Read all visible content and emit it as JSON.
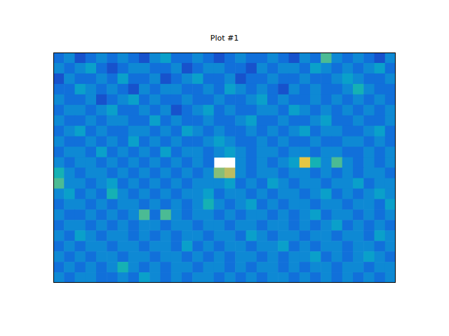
{
  "chart_data": {
    "type": "heatmap",
    "title": "Plot #1",
    "tick_labels": false,
    "zlim": [
      0,
      1
    ],
    "cells": [
      [
        0.2,
        0.3,
        0.1,
        0.2,
        0.3,
        0.2,
        0.3,
        0.2,
        0.1,
        0.3,
        0.4,
        0.2,
        0.2,
        0.3,
        0.2,
        0.1,
        0.2,
        0.3,
        0.2,
        0.2,
        0.3,
        0.2,
        0.1,
        0.3,
        0.2,
        0.6,
        0.3,
        0.2,
        0.3,
        0.2,
        0.1,
        0.3
      ],
      [
        0.3,
        0.2,
        0.3,
        0.4,
        0.2,
        0.1,
        0.2,
        0.3,
        0.3,
        0.2,
        0.2,
        0.3,
        0.1,
        0.2,
        0.3,
        0.3,
        0.2,
        0.2,
        0.1,
        0.3,
        0.2,
        0.3,
        0.3,
        0.2,
        0.4,
        0.3,
        0.2,
        0.3,
        0.2,
        0.3,
        0.4,
        0.2
      ],
      [
        0.1,
        0.3,
        0.2,
        0.2,
        0.3,
        0.2,
        0.4,
        0.2,
        0.2,
        0.3,
        0.1,
        0.2,
        0.3,
        0.4,
        0.2,
        0.2,
        0.3,
        0.1,
        0.2,
        0.2,
        0.3,
        0.2,
        0.2,
        0.3,
        0.2,
        0.2,
        0.3,
        0.4,
        0.3,
        0.2,
        0.2,
        0.3
      ],
      [
        0.2,
        0.2,
        0.4,
        0.3,
        0.2,
        0.3,
        0.2,
        0.1,
        0.3,
        0.2,
        0.3,
        0.3,
        0.2,
        0.2,
        0.3,
        0.2,
        0.4,
        0.3,
        0.2,
        0.3,
        0.2,
        0.1,
        0.3,
        0.2,
        0.3,
        0.2,
        0.2,
        0.3,
        0.5,
        0.3,
        0.2,
        0.2
      ],
      [
        0.3,
        0.2,
        0.2,
        0.3,
        0.1,
        0.2,
        0.3,
        0.4,
        0.2,
        0.3,
        0.2,
        0.2,
        0.3,
        0.2,
        0.2,
        0.3,
        0.2,
        0.2,
        0.3,
        0.4,
        0.2,
        0.3,
        0.2,
        0.2,
        0.3,
        0.2,
        0.3,
        0.2,
        0.3,
        0.2,
        0.3,
        0.2
      ],
      [
        0.2,
        0.3,
        0.3,
        0.2,
        0.3,
        0.4,
        0.2,
        0.2,
        0.3,
        0.2,
        0.3,
        0.1,
        0.2,
        0.3,
        0.4,
        0.2,
        0.3,
        0.2,
        0.2,
        0.3,
        0.3,
        0.2,
        0.4,
        0.3,
        0.2,
        0.3,
        0.2,
        0.3,
        0.2,
        0.3,
        0.2,
        0.3
      ],
      [
        0.3,
        0.2,
        0.2,
        0.3,
        0.2,
        0.3,
        0.3,
        0.2,
        0.2,
        0.4,
        0.2,
        0.3,
        0.2,
        0.2,
        0.3,
        0.2,
        0.2,
        0.3,
        0.4,
        0.2,
        0.2,
        0.3,
        0.2,
        0.2,
        0.3,
        0.4,
        0.2,
        0.2,
        0.3,
        0.2,
        0.2,
        0.3
      ],
      [
        0.2,
        0.3,
        0.4,
        0.2,
        0.3,
        0.2,
        0.2,
        0.3,
        0.3,
        0.2,
        0.3,
        0.2,
        0.4,
        0.3,
        0.2,
        0.3,
        0.2,
        0.2,
        0.3,
        0.2,
        0.3,
        0.2,
        0.3,
        0.4,
        0.2,
        0.3,
        0.3,
        0.2,
        0.2,
        0.3,
        0.4,
        0.2
      ],
      [
        0.3,
        0.2,
        0.2,
        0.3,
        0.2,
        0.3,
        0.2,
        0.4,
        0.2,
        0.3,
        0.2,
        0.3,
        0.2,
        0.2,
        0.3,
        0.4,
        0.3,
        0.2,
        0.2,
        0.3,
        0.2,
        0.3,
        0.2,
        0.2,
        0.3,
        0.2,
        0.2,
        0.3,
        0.3,
        0.2,
        0.3,
        0.2
      ],
      [
        0.2,
        0.3,
        0.3,
        0.2,
        0.4,
        0.2,
        0.3,
        0.2,
        0.3,
        0.2,
        0.4,
        0.2,
        0.3,
        0.3,
        0.2,
        0.3,
        0.4,
        0.3,
        0.2,
        0.3,
        0.3,
        0.2,
        0.3,
        0.3,
        0.2,
        0.3,
        0.3,
        0.2,
        0.2,
        0.3,
        0.2,
        0.3
      ],
      [
        0.3,
        0.2,
        0.3,
        0.3,
        0.2,
        0.3,
        0.2,
        0.3,
        0.2,
        0.3,
        0.2,
        0.3,
        0.2,
        0.3,
        0.2,
        null,
        null,
        0.3,
        0.2,
        0.3,
        0.2,
        0.3,
        0.4,
        0.9,
        0.5,
        0.3,
        0.6,
        0.3,
        0.2,
        0.3,
        0.2,
        0.3
      ],
      [
        0.5,
        0.3,
        0.2,
        0.3,
        0.3,
        0.2,
        0.3,
        0.2,
        0.3,
        0.2,
        0.3,
        0.2,
        0.3,
        0.2,
        0.3,
        0.7,
        0.8,
        0.3,
        0.2,
        0.3,
        0.3,
        0.2,
        0.3,
        0.3,
        0.2,
        0.3,
        0.2,
        0.3,
        0.2,
        0.3,
        0.3,
        0.2
      ],
      [
        0.6,
        0.3,
        0.3,
        0.2,
        0.3,
        0.4,
        0.2,
        0.3,
        0.2,
        0.3,
        0.2,
        0.3,
        0.2,
        0.3,
        0.3,
        0.3,
        0.4,
        0.2,
        0.3,
        0.2,
        0.4,
        0.3,
        0.2,
        0.3,
        0.3,
        0.2,
        0.3,
        0.3,
        0.4,
        0.2,
        0.3,
        0.3
      ],
      [
        0.3,
        0.4,
        0.2,
        0.3,
        0.2,
        0.5,
        0.3,
        0.2,
        0.3,
        0.2,
        0.3,
        0.2,
        0.3,
        0.3,
        0.4,
        0.2,
        0.3,
        0.3,
        0.2,
        0.3,
        0.2,
        0.3,
        0.3,
        0.2,
        0.3,
        0.4,
        0.2,
        0.3,
        0.2,
        0.3,
        0.4,
        0.3
      ],
      [
        0.2,
        0.3,
        0.3,
        0.2,
        0.3,
        0.2,
        0.3,
        0.3,
        0.2,
        0.3,
        0.2,
        0.3,
        0.2,
        0.3,
        0.5,
        0.3,
        0.2,
        0.3,
        0.4,
        0.2,
        0.3,
        0.2,
        0.3,
        0.3,
        0.2,
        0.3,
        0.3,
        0.2,
        0.3,
        0.3,
        0.2,
        0.4
      ],
      [
        0.3,
        0.2,
        0.2,
        0.3,
        0.2,
        0.3,
        0.2,
        0.3,
        0.6,
        0.2,
        0.6,
        0.3,
        0.2,
        0.3,
        0.3,
        0.2,
        0.3,
        0.2,
        0.3,
        0.3,
        0.2,
        0.3,
        0.2,
        0.3,
        0.4,
        0.2,
        0.3,
        0.3,
        0.2,
        0.3,
        0.2,
        0.3
      ],
      [
        0.2,
        0.3,
        0.3,
        0.2,
        0.3,
        0.2,
        0.3,
        0.2,
        0.3,
        0.3,
        0.2,
        0.3,
        0.3,
        0.2,
        0.3,
        0.3,
        0.2,
        0.3,
        0.3,
        0.2,
        0.3,
        0.3,
        0.2,
        0.3,
        0.2,
        0.3,
        0.4,
        0.2,
        0.3,
        0.2,
        0.3,
        0.2
      ],
      [
        0.3,
        0.2,
        0.4,
        0.3,
        0.2,
        0.3,
        0.3,
        0.2,
        0.3,
        0.2,
        0.3,
        0.2,
        0.3,
        0.3,
        0.2,
        0.3,
        0.3,
        0.2,
        0.4,
        0.3,
        0.2,
        0.3,
        0.3,
        0.2,
        0.3,
        0.3,
        0.2,
        0.3,
        0.3,
        0.2,
        0.4,
        0.3
      ],
      [
        0.2,
        0.3,
        0.2,
        0.3,
        0.3,
        0.2,
        0.3,
        0.3,
        0.2,
        0.3,
        0.3,
        0.2,
        0.4,
        0.2,
        0.3,
        0.2,
        0.3,
        0.3,
        0.2,
        0.3,
        0.3,
        0.4,
        0.2,
        0.3,
        0.2,
        0.3,
        0.3,
        0.2,
        0.3,
        0.3,
        0.2,
        0.3
      ],
      [
        0.3,
        0.2,
        0.3,
        0.2,
        0.3,
        0.3,
        0.2,
        0.3,
        0.3,
        0.2,
        0.3,
        0.3,
        0.2,
        0.3,
        0.2,
        0.3,
        0.2,
        0.3,
        0.3,
        0.2,
        0.3,
        0.2,
        0.3,
        0.3,
        0.4,
        0.2,
        0.3,
        0.2,
        0.3,
        0.4,
        0.3,
        0.2
      ],
      [
        0.2,
        0.3,
        0.2,
        0.3,
        0.2,
        0.3,
        0.5,
        0.3,
        0.2,
        0.3,
        0.2,
        0.3,
        0.3,
        0.2,
        0.3,
        0.3,
        0.2,
        0.3,
        0.2,
        0.3,
        0.3,
        0.2,
        0.3,
        0.2,
        0.3,
        0.3,
        0.2,
        0.3,
        0.3,
        0.2,
        0.3,
        0.3
      ],
      [
        0.3,
        0.2,
        0.3,
        0.3,
        0.2,
        0.2,
        0.3,
        0.2,
        0.4,
        0.3,
        0.2,
        0.3,
        0.2,
        0.3,
        0.3,
        0.2,
        0.3,
        0.2,
        0.3,
        0.2,
        0.3,
        0.3,
        0.2,
        0.3,
        0.2,
        0.3,
        0.2,
        0.3,
        0.2,
        0.3,
        0.2,
        0.3
      ]
    ]
  }
}
